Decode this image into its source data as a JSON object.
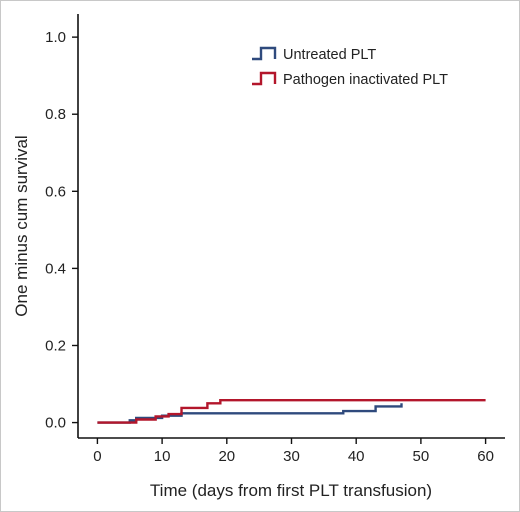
{
  "chart_data": {
    "type": "line",
    "step": true,
    "title": "",
    "xlabel": "Time (days from first PLT transfusion)",
    "ylabel": "One minus cum survival",
    "xlim": [
      -3,
      63
    ],
    "ylim": [
      -0.04,
      1.06
    ],
    "xticks": [
      0,
      10,
      20,
      30,
      40,
      50,
      60
    ],
    "yticks": [
      0.0,
      0.2,
      0.4,
      0.6,
      0.8,
      1.0
    ],
    "xtick_labels": [
      "0",
      "10",
      "20",
      "30",
      "40",
      "50",
      "60"
    ],
    "ytick_labels": [
      "0.0",
      "0.2",
      "0.4",
      "0.6",
      "0.8",
      "1.0"
    ],
    "legend_position": "top-right",
    "grid": false,
    "series": [
      {
        "name": "Untreated PLT",
        "color": "#2f4a7d",
        "x": [
          0,
          5,
          6,
          10,
          13,
          38,
          43,
          47
        ],
        "y": [
          0.0,
          0.006,
          0.012,
          0.018,
          0.024,
          0.03,
          0.042,
          0.05
        ]
      },
      {
        "name": "Pathogen inactivated PLT",
        "color": "#b3162b",
        "x": [
          0,
          6,
          9,
          11,
          13,
          17,
          19,
          60
        ],
        "y": [
          0.0,
          0.008,
          0.016,
          0.022,
          0.038,
          0.05,
          0.058,
          0.058
        ]
      }
    ]
  }
}
